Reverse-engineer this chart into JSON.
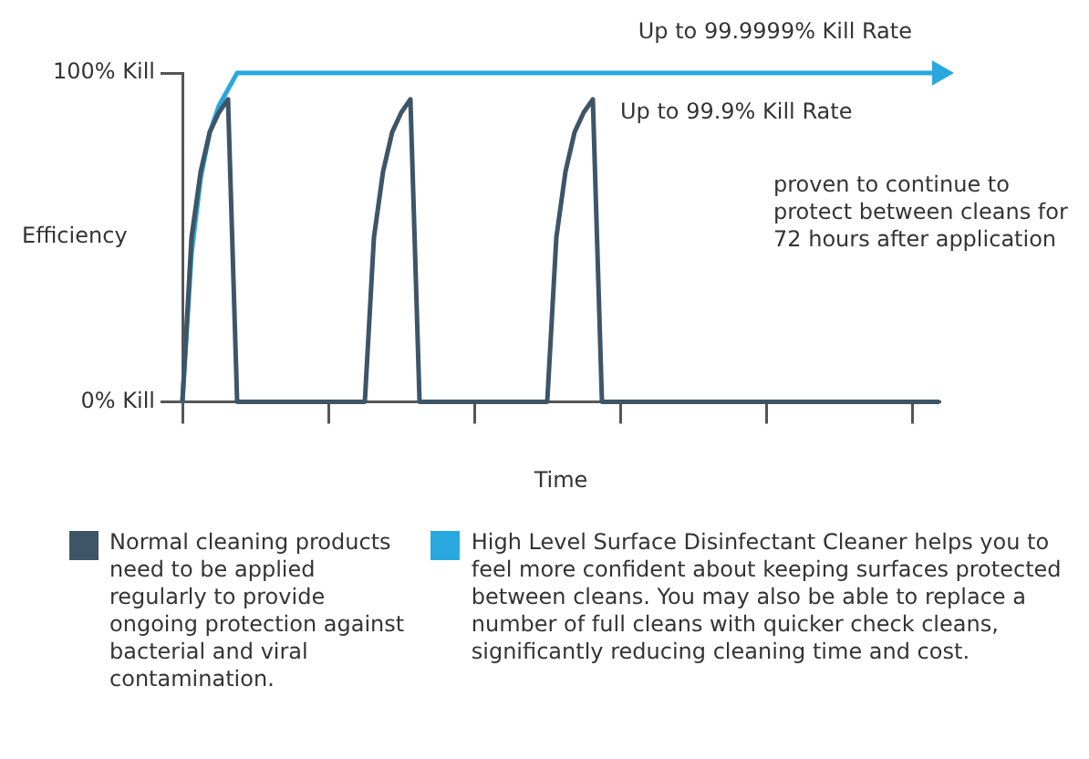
{
  "chart_data": {
    "type": "line",
    "ylabel": "Efficiency",
    "xlabel": "Time",
    "legend": "bottom",
    "marker": "none",
    "line_style": "solid",
    "grid": false,
    "ylim": [
      0,
      100
    ],
    "yticks": [
      {
        "value": 0,
        "label": "0% Kill"
      },
      {
        "value": 100,
        "label": "100% Kill"
      }
    ],
    "categories": [
      null,
      null,
      null,
      null,
      null,
      null,
      null,
      null,
      null,
      null,
      null,
      null,
      null,
      null,
      null,
      null,
      null,
      null,
      null,
      null,
      null,
      null,
      null,
      null,
      null,
      null,
      null,
      null,
      null,
      null,
      null,
      null,
      null,
      null,
      null,
      null,
      null,
      null,
      null,
      null,
      null,
      null,
      null,
      null,
      null,
      null,
      null,
      null,
      null,
      null,
      null,
      null,
      null,
      null,
      null,
      null,
      null,
      null,
      null,
      null,
      null,
      null,
      null,
      null,
      null,
      null,
      null,
      null,
      null,
      null,
      null,
      null,
      null,
      null,
      null,
      null,
      null,
      null,
      null,
      null,
      null,
      null,
      null,
      null
    ],
    "series": [
      {
        "name": "High Level Surface Disinfectant Cleaner helps you to feel more confident about keeping surfaces protected between cleans. You may also be able to replace a number of full cleans with quicker check cleans, significantly reducing cleaning time and cost.",
        "color": "#29a8e0",
        "values": [
          0,
          45,
          68,
          82,
          90,
          95,
          100,
          100,
          100,
          100,
          100,
          100,
          100,
          100,
          100,
          100,
          100,
          100,
          100,
          100,
          100,
          100,
          100,
          100,
          100,
          100,
          100,
          100,
          100,
          100,
          100,
          100,
          100,
          100,
          100,
          100,
          100,
          100,
          100,
          100,
          100,
          100,
          100,
          100,
          100,
          100,
          100,
          100,
          100,
          100,
          100,
          100,
          100,
          100,
          100,
          100,
          100,
          100,
          100,
          100,
          100,
          100,
          100,
          100,
          100,
          100,
          100,
          100,
          100,
          100,
          100,
          100,
          100,
          100,
          100,
          100,
          100,
          100,
          100,
          100,
          100,
          100,
          100,
          100
        ]
      },
      {
        "name": "Normal cleaning products need to be applied regularly to provide ongoing protection against bacterial and viral contamination.",
        "color": "#3d5567",
        "values": [
          0,
          50,
          70,
          82,
          88,
          92,
          0,
          0,
          0,
          0,
          0,
          0,
          0,
          0,
          0,
          0,
          0,
          0,
          0,
          0,
          0,
          50,
          70,
          82,
          88,
          92,
          0,
          0,
          0,
          0,
          0,
          0,
          0,
          0,
          0,
          0,
          0,
          0,
          0,
          0,
          0,
          50,
          70,
          82,
          88,
          92,
          0,
          0,
          0,
          0,
          0,
          0,
          0,
          0,
          0,
          0,
          0,
          0,
          0,
          0,
          0,
          0,
          0,
          0,
          0,
          0,
          0,
          0,
          0,
          0,
          0,
          0,
          0,
          0,
          0,
          0,
          0,
          0,
          0,
          0,
          0,
          0,
          0,
          0
        ]
      }
    ],
    "annotations": [
      "Up to 99.9999% Kill Rate",
      "Up to 99.9% Kill Rate",
      "proven to continue to protect between cleans for 72 hours after application"
    ]
  }
}
